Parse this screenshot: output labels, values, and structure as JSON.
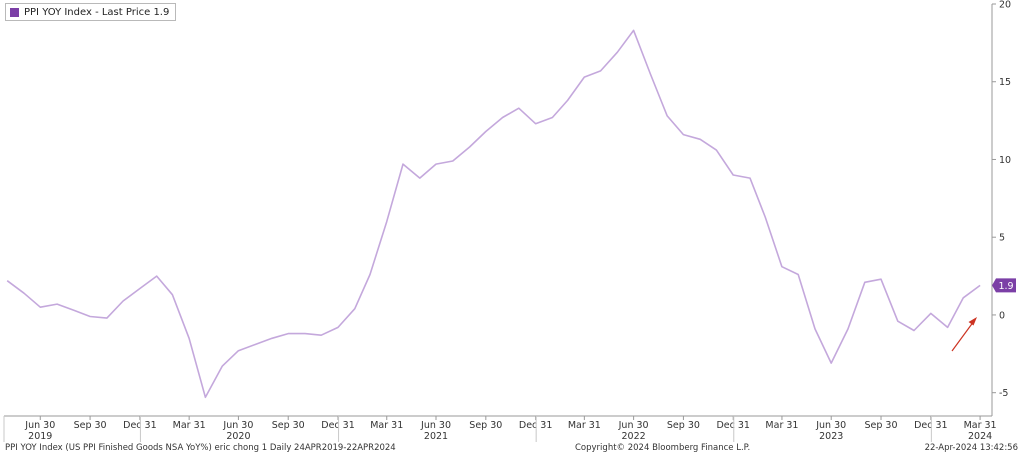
{
  "legend": {
    "label": "PPI YOY Index - Last Price 1.9",
    "color": "#7b3fa6"
  },
  "last_price_label": {
    "text": "1.9",
    "color": "#7b3fa6"
  },
  "footer": {
    "left": "PPI YOY Index (US PPI Finished Goods NSA YoY%) eric chong 1  Daily 24APR2019-22APR2024",
    "center": "Copyright© 2024 Bloomberg Finance L.P.",
    "right": "22-Apr-2024 13:42:56"
  },
  "colors": {
    "line": "#c4a8dc",
    "arrow": "#cc3322",
    "axis": "#999999"
  },
  "chart_data": {
    "type": "line",
    "series": [
      {
        "name": "PPI YOY Index",
        "x": [
          "2019-04-30",
          "2019-05-31",
          "2019-06-30",
          "2019-07-31",
          "2019-08-31",
          "2019-09-30",
          "2019-10-31",
          "2019-11-30",
          "2019-12-31",
          "2020-01-31",
          "2020-02-29",
          "2020-03-31",
          "2020-04-30",
          "2020-05-31",
          "2020-06-30",
          "2020-07-31",
          "2020-08-31",
          "2020-09-30",
          "2020-10-31",
          "2020-11-30",
          "2020-12-31",
          "2021-01-31",
          "2021-02-28",
          "2021-03-31",
          "2021-04-30",
          "2021-05-31",
          "2021-06-30",
          "2021-07-31",
          "2021-08-31",
          "2021-09-30",
          "2021-10-31",
          "2021-11-30",
          "2021-12-31",
          "2022-01-31",
          "2022-02-28",
          "2022-03-31",
          "2022-04-30",
          "2022-05-31",
          "2022-06-30",
          "2022-07-31",
          "2022-08-31",
          "2022-09-30",
          "2022-10-31",
          "2022-11-30",
          "2022-12-31",
          "2023-01-31",
          "2023-02-28",
          "2023-03-31",
          "2023-04-30",
          "2023-05-31",
          "2023-06-30",
          "2023-07-31",
          "2023-08-31",
          "2023-09-30",
          "2023-10-31",
          "2023-11-30",
          "2023-12-31",
          "2024-01-31",
          "2024-02-29",
          "2024-03-31"
        ],
        "values": [
          2.2,
          1.4,
          0.5,
          0.7,
          0.3,
          -0.1,
          -0.2,
          0.9,
          1.7,
          2.5,
          1.3,
          -1.5,
          -5.3,
          -3.3,
          -2.3,
          -1.9,
          -1.5,
          -1.2,
          -1.2,
          -1.3,
          -0.8,
          0.4,
          2.6,
          6.0,
          9.7,
          8.8,
          9.7,
          9.9,
          10.8,
          11.8,
          12.7,
          13.3,
          12.3,
          12.7,
          13.8,
          15.3,
          15.7,
          16.9,
          18.3,
          15.5,
          12.8,
          11.6,
          11.3,
          10.6,
          9.0,
          8.8,
          6.3,
          3.1,
          2.6,
          -0.9,
          -3.1,
          -0.9,
          2.1,
          2.3,
          -0.4,
          -1.0,
          0.1,
          -0.8,
          1.1,
          1.9
        ]
      }
    ],
    "ylim": [
      -6.5,
      20
    ],
    "y_ticks": [
      -5,
      0,
      5,
      10,
      15,
      20
    ],
    "y_tick_labels": [
      "-5",
      "0",
      "5",
      "10",
      "15",
      "20"
    ],
    "y_axis_side": "right",
    "x_ticks": [
      {
        "date": "2019-06-30",
        "label": "Jun 30"
      },
      {
        "date": "2019-09-30",
        "label": "Sep 30"
      },
      {
        "date": "2019-12-31",
        "label": "Dec 31"
      },
      {
        "date": "2020-03-31",
        "label": "Mar 31"
      },
      {
        "date": "2020-06-30",
        "label": "Jun 30"
      },
      {
        "date": "2020-09-30",
        "label": "Sep 30"
      },
      {
        "date": "2020-12-31",
        "label": "Dec 31"
      },
      {
        "date": "2021-03-31",
        "label": "Mar 31"
      },
      {
        "date": "2021-06-30",
        "label": "Jun 30"
      },
      {
        "date": "2021-09-30",
        "label": "Sep 30"
      },
      {
        "date": "2021-12-31",
        "label": "Dec 31"
      },
      {
        "date": "2022-03-31",
        "label": "Mar 31"
      },
      {
        "date": "2022-06-30",
        "label": "Jun 30"
      },
      {
        "date": "2022-09-30",
        "label": "Sep 30"
      },
      {
        "date": "2022-12-31",
        "label": "Dec 31"
      },
      {
        "date": "2023-03-31",
        "label": "Mar 31"
      },
      {
        "date": "2023-06-30",
        "label": "Jun 30"
      },
      {
        "date": "2023-09-30",
        "label": "Sep 30"
      },
      {
        "date": "2023-12-31",
        "label": "Dec 31"
      },
      {
        "date": "2024-03-31",
        "label": "Mar 31"
      }
    ],
    "year_labels": [
      {
        "date": "2019-06-30",
        "label": "2019"
      },
      {
        "date": "2020-06-30",
        "label": "2020"
      },
      {
        "date": "2021-06-30",
        "label": "2021"
      },
      {
        "date": "2022-06-30",
        "label": "2022"
      },
      {
        "date": "2023-06-30",
        "label": "2023"
      },
      {
        "date": "2024-03-31",
        "label": "2024"
      }
    ],
    "x_range": [
      "2019-04-24",
      "2024-04-22"
    ],
    "grid": false,
    "legend_position": "top-left"
  }
}
